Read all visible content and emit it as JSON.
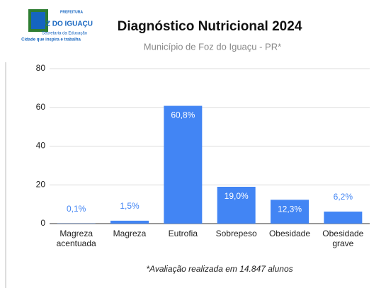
{
  "logo": {
    "top": "PREFEITURA",
    "name": "FOZ DO IGUAÇU",
    "department": "Secretaria da Educação",
    "slogan": "Cidade que inspira e trabalha"
  },
  "chart_data": {
    "type": "bar",
    "title": "Diagnóstico Nutricional 2024",
    "subtitle": "Município de Foz do Iguaçu - PR*",
    "categories": [
      "Magreza acentuada",
      "Magreza",
      "Eutrofia",
      "Sobrepeso",
      "Obesidade",
      "Obesidade grave"
    ],
    "values": [
      0.1,
      1.5,
      60.8,
      19.0,
      12.3,
      6.2
    ],
    "value_labels": [
      "0,1%",
      "1,5%",
      "60,8%",
      "19,0%",
      "12,3%",
      "6,2%"
    ],
    "color": "#4285f4",
    "ylim": [
      0,
      80
    ],
    "yticks": [
      0,
      20,
      40,
      60,
      80
    ],
    "grid": true,
    "note": "*Avaliação realizada em 14.847 alunos"
  }
}
